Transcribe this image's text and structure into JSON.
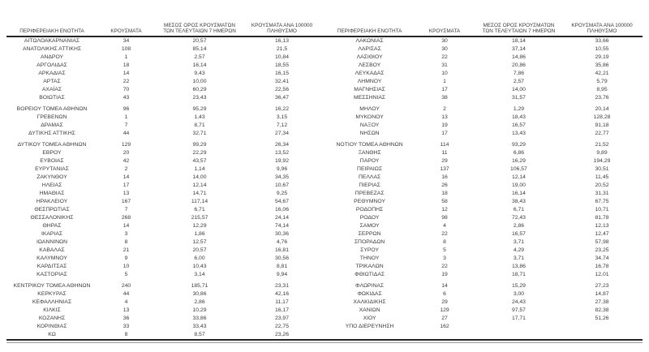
{
  "page": {
    "background": "#ffffff",
    "text_color": "#3a3a3a",
    "rule_color": "#262626"
  },
  "table": {
    "columns": {
      "region": "ΠΕΡΙΦΕΡΕΙΑΚΗ ΕΝΟΤΗΤΑ",
      "cases": "ΚΡΟΥΣΜΑΤΑ",
      "avg7_line1": "ΜΕΣΟΣ ΟΡΟΣ ΚΡΟΥΣΜΑΤΩΝ",
      "avg7_line2": "ΤΩΝ ΤΕΛΕΥΤΑΙΩΝ 7 ΗΜΕΡΩΝ",
      "per100k_line1": "ΚΡΟΥΣΜΑΤΑ ΑΝΑ 100000",
      "per100k_line2": "ΠΛΗΘΥΣΜΟ"
    },
    "left_groups": [
      [
        [
          "ΑΙΤΩΛΟΑΚΑΡΝΑΝΙΑΣ",
          "34",
          "20,57",
          "16,13"
        ],
        [
          "ΑΝΑΤΟΛΙΚΗΣ ΑΤΤΙΚΗΣ",
          "108",
          "85,14",
          "21,5"
        ],
        [
          "ΑΝΔΡΟΥ",
          "1",
          "2,57",
          "10,84"
        ],
        [
          "ΑΡΓΟΛΙΔΑΣ",
          "18",
          "16,14",
          "18,55"
        ],
        [
          "ΑΡΚΑΔΙΑΣ",
          "14",
          "9,43",
          "16,15"
        ],
        [
          "ΑΡΤΑΣ",
          "22",
          "10,00",
          "32,41"
        ],
        [
          "ΑΧΑΪΑΣ",
          "70",
          "60,29",
          "22,56"
        ],
        [
          "ΒΟΙΩΤΙΑΣ",
          "43",
          "23,43",
          "36,47"
        ]
      ],
      [
        [
          "ΒΟΡΕΙΟΥ ΤΟΜΕΑ ΑΘΗΝΩΝ",
          "96",
          "95,29",
          "16,22"
        ],
        [
          "ΓΡΕΒΕΝΩΝ",
          "1",
          "1,43",
          "3,15"
        ],
        [
          "ΔΡΑΜΑΣ",
          "7",
          "8,71",
          "7,12"
        ],
        [
          "ΔΥΤΙΚΗΣ ΑΤΤΙΚΗΣ",
          "44",
          "32,71",
          "27,34"
        ]
      ],
      [
        [
          "ΔΥΤΙΚΟΥ ΤΟΜΕΑ ΑΘΗΝΩΝ",
          "129",
          "99,29",
          "26,34"
        ],
        [
          "ΕΒΡΟΥ",
          "20",
          "22,29",
          "13,52"
        ],
        [
          "ΕΥΒΟΙΑΣ",
          "42",
          "43,57",
          "19,92"
        ],
        [
          "ΕΥΡΥΤΑΝΙΑΣ",
          "2",
          "1,14",
          "9,96"
        ],
        [
          "ΖΑΚΥΝΘΟΥ",
          "14",
          "14,00",
          "34,35"
        ],
        [
          "ΗΛΕΙΑΣ",
          "17",
          "12,14",
          "10,67"
        ],
        [
          "ΗΜΑΘΙΑΣ",
          "13",
          "14,71",
          "9,25"
        ],
        [
          "ΗΡΑΚΛΕΙΟΥ",
          "167",
          "117,14",
          "54,67"
        ],
        [
          "ΘΕΣΠΡΩΤΙΑΣ",
          "7",
          "6,71",
          "16,06"
        ],
        [
          "ΘΕΣΣΑΛΟΝΙΚΗΣ",
          "268",
          "215,57",
          "24,14"
        ],
        [
          "ΘΗΡΑΣ",
          "14",
          "12,29",
          "74,14"
        ],
        [
          "ΙΚΑΡΙΑΣ",
          "3",
          "1,86",
          "30,36"
        ],
        [
          "ΙΩΑΝΝΙΝΩΝ",
          "8",
          "12,57",
          "4,76"
        ],
        [
          "ΚΑΒΑΛΑΣ",
          "21",
          "20,57",
          "16,81"
        ],
        [
          "ΚΑΛΥΜΝΟΥ",
          "9",
          "6,00",
          "30,56"
        ],
        [
          "ΚΑΡΔΙΤΣΑΣ",
          "10",
          "10,43",
          "8,81"
        ],
        [
          "ΚΑΣΤΟΡΙΑΣ",
          "5",
          "3,14",
          "9,94"
        ]
      ],
      [
        [
          "ΚΕΝΤΡΙΚΟΥ ΤΟΜΕΑ ΑΘΗΝΩΝ",
          "240",
          "185,71",
          "23,31"
        ],
        [
          "ΚΕΡΚΥΡΑΣ",
          "44",
          "30,86",
          "42,16"
        ],
        [
          "ΚΕΦΑΛΛΗΝΙΑΣ",
          "4",
          "2,86",
          "11,17"
        ],
        [
          "ΚΙΛΚΙΣ",
          "13",
          "10,29",
          "16,17"
        ],
        [
          "ΚΟΖΑΝΗΣ",
          "36",
          "33,86",
          "23,97"
        ],
        [
          "ΚΟΡΙΝΘΙΑΣ",
          "33",
          "33,43",
          "22,75"
        ],
        [
          "ΚΩ",
          "8",
          "8,57",
          "23,26"
        ]
      ]
    ],
    "right_groups": [
      [
        [
          "ΛΑΚΩΝΙΑΣ",
          "30",
          "18,14",
          "33,66"
        ],
        [
          "ΛΑΡΙΣΑΣ",
          "30",
          "37,14",
          "10,55"
        ],
        [
          "ΛΑΣΙΘΙΟΥ",
          "22",
          "14,86",
          "29,19"
        ],
        [
          "ΛΕΣΒΟΥ",
          "31",
          "20,86",
          "35,86"
        ],
        [
          "ΛΕΥΚΑΔΑΣ",
          "10",
          "7,86",
          "42,21"
        ],
        [
          "ΛΗΜΝΟΥ",
          "1",
          "2,57",
          "5,79"
        ],
        [
          "ΜΑΓΝΗΣΙΑΣ",
          "17",
          "14,00",
          "8,95"
        ],
        [
          "ΜΕΣΣΗΝΙΑΣ",
          "38",
          "31,57",
          "23,76"
        ]
      ],
      [
        [
          "ΜΗΛΟΥ",
          "2",
          "1,29",
          "20,14"
        ],
        [
          "ΜΥΚΟΝΟΥ",
          "13",
          "18,43",
          "128,28"
        ],
        [
          "ΝΑΞΟΥ",
          "19",
          "16,57",
          "91,18"
        ],
        [
          "ΝΗΣΩΝ",
          "17",
          "13,43",
          "22,77"
        ]
      ],
      [
        [
          "ΝΟΤΙΟΥ ΤΟΜΕΑ ΑΘΗΝΩΝ",
          "114",
          "93,29",
          "21,52"
        ],
        [
          "ΞΑΝΘΗΣ",
          "11",
          "6,86",
          "9,89"
        ],
        [
          "ΠΑΡΟΥ",
          "29",
          "16,29",
          "194,29"
        ],
        [
          "ΠΕΙΡΑΙΩΣ",
          "137",
          "106,57",
          "30,51"
        ],
        [
          "ΠΕΛΛΑΣ",
          "16",
          "12,14",
          "11,45"
        ],
        [
          "ΠΙΕΡΙΑΣ",
          "26",
          "19,00",
          "20,52"
        ],
        [
          "ΠΡΕΒΕΖΑΣ",
          "18",
          "16,14",
          "31,31"
        ],
        [
          "ΡΕΘΥΜΝΟΥ",
          "58",
          "38,43",
          "67,75"
        ],
        [
          "ΡΟΔΟΠΗΣ",
          "12",
          "6,71",
          "10,71"
        ],
        [
          "ΡΟΔΟΥ",
          "98",
          "72,43",
          "81,78"
        ],
        [
          "ΣΑΜΟΥ",
          "4",
          "2,86",
          "12,13"
        ],
        [
          "ΣΕΡΡΩΝ",
          "22",
          "16,57",
          "12,47"
        ],
        [
          "ΣΠΟΡΑΔΩΝ",
          "8",
          "3,71",
          "57,98"
        ],
        [
          "ΣΥΡΟΥ",
          "5",
          "4,29",
          "23,25"
        ],
        [
          "ΤΗΝΟΥ",
          "3",
          "3,71",
          "34,74"
        ],
        [
          "ΤΡΙΚΑΛΩΝ",
          "22",
          "13,86",
          "16,78"
        ],
        [
          "ΦΘΙΩΤΙΔΑΣ",
          "19",
          "18,71",
          "12,01"
        ]
      ],
      [
        [
          "ΦΛΩΡΙΝΑΣ",
          "14",
          "15,29",
          "27,23"
        ],
        [
          "ΦΩΚΙΔΑΣ",
          "6",
          "3,00",
          "14,87"
        ],
        [
          "ΧΑΛΚΙΔΙΚΗΣ",
          "29",
          "24,43",
          "27,38"
        ],
        [
          "ΧΑΝΙΩΝ",
          "129",
          "97,57",
          "82,38"
        ],
        [
          "ΧΙΟΥ",
          "27",
          "17,71",
          "51,26"
        ],
        [
          "ΥΠΟ ΔΙΕΡΕΥΝΗΣΗ",
          "162",
          "",
          ""
        ]
      ]
    ]
  }
}
